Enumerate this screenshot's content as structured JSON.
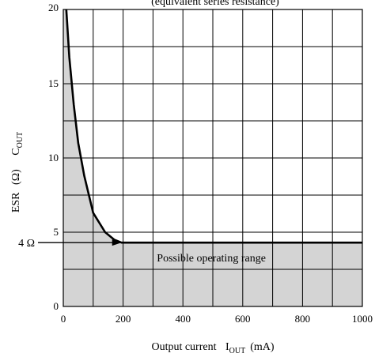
{
  "chart_data": {
    "type": "area",
    "title": "(equivalent series resistance)",
    "xlabel_main": "Output current",
    "xlabel_symbol_main": "I",
    "xlabel_symbol_sub": "OUT",
    "xlabel_unit": "(mA)",
    "ylabel_main": "ESR",
    "ylabel_unit": "(Ω)",
    "ylabel_symbol_main": "C",
    "ylabel_symbol_sub": "OUT",
    "xlim": [
      0,
      1000
    ],
    "ylim": [
      0,
      20
    ],
    "x_ticks": [
      0,
      200,
      400,
      600,
      800,
      1000
    ],
    "y_ticks": [
      0,
      5,
      10,
      15,
      20
    ],
    "grid": true,
    "shade_color": "#d4d4d4",
    "curve": {
      "x": [
        10,
        20,
        35,
        50,
        70,
        100,
        140,
        170,
        195,
        250,
        400,
        600,
        800,
        1000
      ],
      "y": [
        20,
        16.8,
        13.6,
        11,
        8.8,
        6.3,
        5.0,
        4.5,
        4.3,
        4.3,
        4.3,
        4.3,
        4.3,
        4.3
      ]
    },
    "annotation": {
      "label": "4 Ω",
      "y": 4.3,
      "arrow_to_x": 195
    },
    "region_label": {
      "text": "Possible operating range",
      "x": 495,
      "y": 3.3
    }
  }
}
